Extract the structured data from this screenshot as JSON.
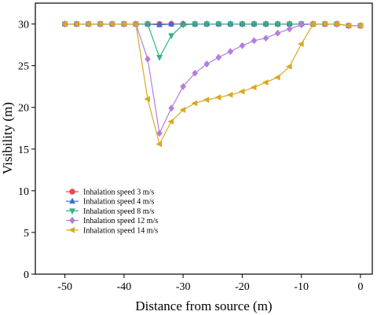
{
  "chart_data": {
    "type": "line",
    "xlabel": "Distance from source (m)",
    "ylabel": "Visibility (m)",
    "xlim": [
      -55,
      2
    ],
    "ylim": [
      0,
      32.5
    ],
    "xticks": [
      -50,
      -40,
      -30,
      -20,
      -10,
      0
    ],
    "yticks": [
      0,
      5,
      10,
      15,
      20,
      25,
      30
    ],
    "grid": false,
    "legend_position": "lower-left",
    "series": [
      {
        "name": "Inhalation speed 3 m/s",
        "color": "#f0454a",
        "marker": "circle",
        "x": [
          -50,
          -48,
          -46,
          -44,
          -42,
          -40,
          -38,
          -36,
          -34,
          -32,
          -30,
          -28,
          -26,
          -24,
          -22,
          -20,
          -18,
          -16,
          -14,
          -12,
          -10,
          -8,
          -6,
          -4,
          -2,
          0
        ],
        "y": [
          30,
          30,
          30,
          30,
          30,
          30,
          30,
          30,
          30,
          30,
          30,
          30,
          30,
          30,
          30,
          30,
          30,
          30,
          30,
          30,
          30,
          30,
          30,
          30,
          29.8,
          29.8
        ]
      },
      {
        "name": "Inhalation speed 4 m/s",
        "color": "#3b6fd6",
        "marker": "triangle-up",
        "x": [
          -50,
          -48,
          -46,
          -44,
          -42,
          -40,
          -38,
          -36,
          -34,
          -32,
          -30,
          -28,
          -26,
          -24,
          -22,
          -20,
          -18,
          -16,
          -14,
          -12,
          -10,
          -8,
          -6,
          -4,
          -2,
          0
        ],
        "y": [
          30,
          30,
          30,
          30,
          30,
          30,
          30,
          30,
          29.9,
          30,
          30,
          30,
          30,
          30,
          30,
          30,
          30,
          30,
          30,
          30,
          30,
          30,
          30,
          30,
          29.8,
          29.8
        ]
      },
      {
        "name": "Inhalation speed 8 m/s",
        "color": "#2fb37f",
        "marker": "triangle-down",
        "x": [
          -50,
          -48,
          -46,
          -44,
          -42,
          -40,
          -38,
          -36,
          -34,
          -32,
          -30,
          -28,
          -26,
          -24,
          -22,
          -20,
          -18,
          -16,
          -14,
          -12,
          -10,
          -8,
          -6,
          -4,
          -2,
          0
        ],
        "y": [
          30,
          30,
          30,
          30,
          30,
          30,
          30,
          30,
          26,
          28.6,
          29.9,
          30,
          30,
          30,
          30,
          30,
          30,
          30,
          30,
          30,
          30,
          30,
          30,
          30,
          29.8,
          29.8
        ]
      },
      {
        "name": "Inhalation speed 12 m/s",
        "color": "#b57ce0",
        "marker": "diamond",
        "x": [
          -50,
          -48,
          -46,
          -44,
          -42,
          -40,
          -38,
          -36,
          -34,
          -32,
          -30,
          -28,
          -26,
          -24,
          -22,
          -20,
          -18,
          -16,
          -14,
          -12,
          -10,
          -8,
          -6,
          -4,
          -2,
          0
        ],
        "y": [
          30,
          30,
          30,
          30,
          30,
          30,
          30,
          25.8,
          16.9,
          19.9,
          22.5,
          24.1,
          25.2,
          26,
          26.7,
          27.4,
          28,
          28.3,
          28.9,
          29.4,
          29.9,
          30,
          30,
          30,
          29.8,
          29.8
        ]
      },
      {
        "name": "Inhalation speed 14 m/s",
        "color": "#d9a820",
        "marker": "triangle-left",
        "x": [
          -50,
          -48,
          -46,
          -44,
          -42,
          -40,
          -38,
          -36,
          -34,
          -32,
          -30,
          -28,
          -26,
          -24,
          -22,
          -20,
          -18,
          -16,
          -14,
          -12,
          -10,
          -8,
          -6,
          -4,
          -2,
          0
        ],
        "y": [
          30,
          30,
          30,
          30,
          30,
          30,
          30,
          21,
          15.6,
          18.3,
          19.7,
          20.5,
          20.9,
          21.2,
          21.5,
          21.9,
          22.4,
          23,
          23.6,
          24.9,
          27.6,
          30,
          30,
          30,
          29.8,
          29.8
        ]
      }
    ]
  }
}
